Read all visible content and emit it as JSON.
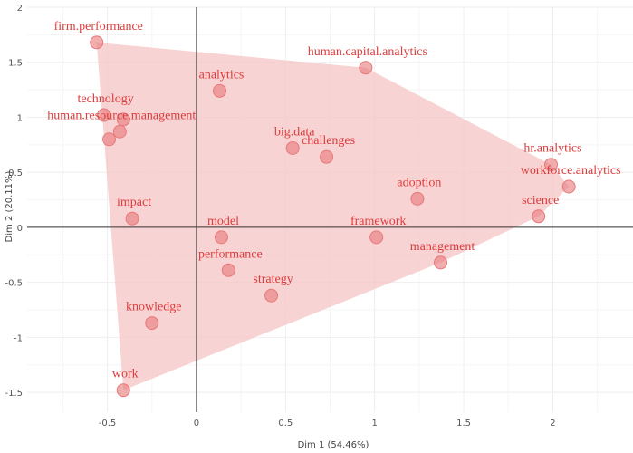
{
  "chart_data": {
    "type": "scatter",
    "xlabel": "Dim 1 (54.46%)",
    "ylabel": "Dim 2 (20.11%)",
    "xlim": [
      -0.95,
      2.45
    ],
    "ylim": [
      -1.68,
      2.0
    ],
    "xticks": [
      -0.5,
      0,
      0.5,
      1,
      1.5,
      2
    ],
    "xtick_labels": [
      "-0.5",
      "0",
      "0.5",
      "1",
      "1.5",
      "2"
    ],
    "yticks": [
      -1.5,
      -1,
      -0.5,
      0,
      0.5,
      1,
      1.5,
      2
    ],
    "ytick_labels": [
      "-1.5",
      "-1",
      "-0.5",
      "0",
      "0.5",
      "1",
      "1.5",
      "2"
    ],
    "grid": true,
    "colors": {
      "points": "#e8787a",
      "hull": "#f6c4c4",
      "labels": "#dc3c3c",
      "axes": "#333333",
      "grid": "#eeeeee"
    },
    "points": [
      {
        "label": "firm.performance",
        "x": -0.56,
        "y": 1.68
      },
      {
        "label": "human.capital.analytics",
        "x": 0.95,
        "y": 1.45
      },
      {
        "label": "analytics",
        "x": 0.13,
        "y": 1.24
      },
      {
        "label": "technology",
        "x": -0.52,
        "y": 1.02
      },
      {
        "label": "",
        "x": -0.41,
        "y": 0.98
      },
      {
        "label": "human.resource.management",
        "x": -0.43,
        "y": 0.87
      },
      {
        "label": "",
        "x": -0.49,
        "y": 0.8
      },
      {
        "label": "big.data",
        "x": 0.54,
        "y": 0.72
      },
      {
        "label": "challenges",
        "x": 0.73,
        "y": 0.64
      },
      {
        "label": "hr.analytics",
        "x": 1.99,
        "y": 0.57
      },
      {
        "label": "workforce.analytics",
        "x": 2.09,
        "y": 0.37
      },
      {
        "label": "adoption",
        "x": 1.24,
        "y": 0.26
      },
      {
        "label": "science",
        "x": 1.92,
        "y": 0.1
      },
      {
        "label": "impact",
        "x": -0.36,
        "y": 0.08
      },
      {
        "label": "model",
        "x": 0.14,
        "y": -0.09
      },
      {
        "label": "framework",
        "x": 1.01,
        "y": -0.09
      },
      {
        "label": "performance",
        "x": 0.18,
        "y": -0.39
      },
      {
        "label": "management",
        "x": 1.37,
        "y": -0.32
      },
      {
        "label": "strategy",
        "x": 0.42,
        "y": -0.62
      },
      {
        "label": "knowledge",
        "x": -0.25,
        "y": -0.87
      },
      {
        "label": "work",
        "x": -0.41,
        "y": -1.48
      }
    ]
  }
}
